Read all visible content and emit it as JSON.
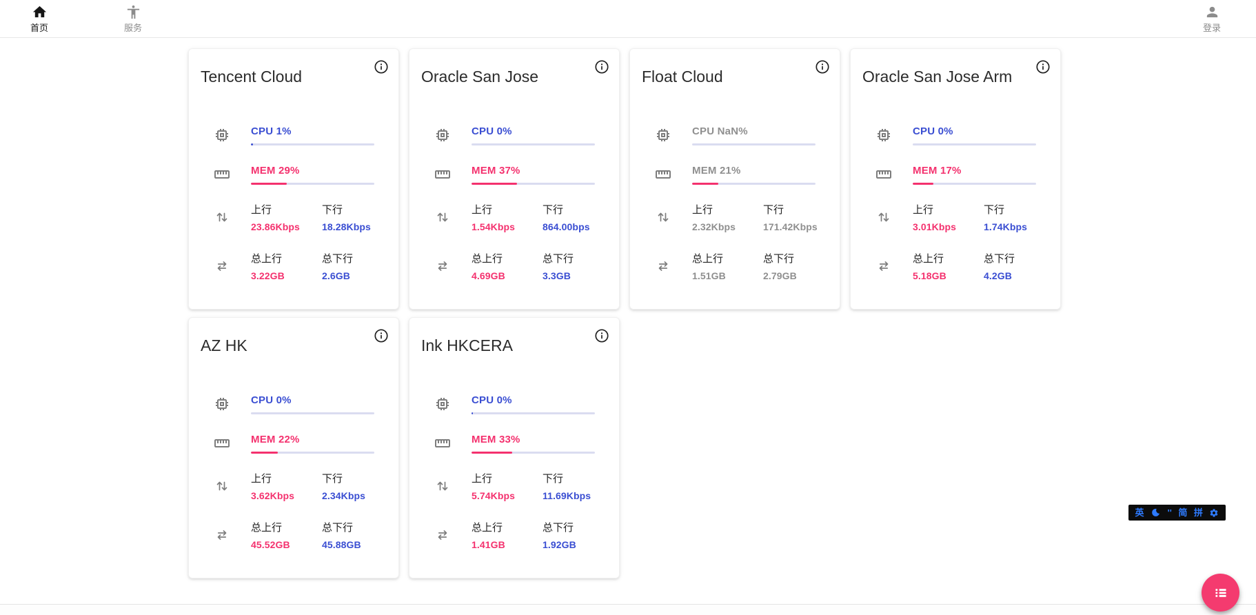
{
  "navbar": {
    "home": {
      "label": "首页",
      "icon": "home-icon",
      "active": true
    },
    "services": {
      "label": "服务",
      "icon": "accessibility-icon",
      "active": false
    },
    "login": {
      "label": "登录",
      "icon": "account-icon",
      "active": false
    }
  },
  "labels": {
    "up": "上行",
    "down": "下行",
    "total_up": "总上行",
    "total_down": "总下行"
  },
  "colors": {
    "accent_blue": "#3a4ed2",
    "accent_pink": "#f4316e",
    "bar_track": "#dadcf0",
    "offline_gray": "#8f8f8f",
    "fab_pink": "#f43b6f",
    "ime_blue": "#2e7bff"
  },
  "servers": [
    {
      "name": "Tencent Cloud",
      "cpu_label": "CPU 1%",
      "cpu_pct": 1,
      "cpu_bar_pct": 1.5,
      "mem_label": "MEM 29%",
      "mem_pct": 29,
      "up_speed": "23.86Kbps",
      "down_speed": "18.28Kbps",
      "total_up": "3.22GB",
      "total_down": "2.6GB",
      "offline": false
    },
    {
      "name": "Oracle San Jose",
      "cpu_label": "CPU 0%",
      "cpu_pct": 0,
      "cpu_bar_pct": 0,
      "mem_label": "MEM 37%",
      "mem_pct": 37,
      "up_speed": "1.54Kbps",
      "down_speed": "864.00bps",
      "total_up": "4.69GB",
      "total_down": "3.3GB",
      "offline": false
    },
    {
      "name": "Float Cloud",
      "cpu_label": "CPU NaN%",
      "cpu_pct": null,
      "cpu_bar_pct": 0,
      "mem_label": "MEM 21%",
      "mem_pct": 21,
      "up_speed": "2.32Kbps",
      "down_speed": "171.42Kbps",
      "total_up": "1.51GB",
      "total_down": "2.79GB",
      "offline": true
    },
    {
      "name": "Oracle San Jose Arm",
      "cpu_label": "CPU 0%",
      "cpu_pct": 0,
      "cpu_bar_pct": 0,
      "mem_label": "MEM 17%",
      "mem_pct": 17,
      "up_speed": "3.01Kbps",
      "down_speed": "1.74Kbps",
      "total_up": "5.18GB",
      "total_down": "4.2GB",
      "offline": false
    },
    {
      "name": "AZ HK",
      "cpu_label": "CPU 0%",
      "cpu_pct": 0,
      "cpu_bar_pct": 0,
      "mem_label": "MEM 22%",
      "mem_pct": 22,
      "up_speed": "3.62Kbps",
      "down_speed": "2.34Kbps",
      "total_up": "45.52GB",
      "total_down": "45.88GB",
      "offline": false
    },
    {
      "name": "Ink HKCERA",
      "cpu_label": "CPU 0%",
      "cpu_pct": 0,
      "cpu_bar_pct": 1.2,
      "mem_label": "MEM 33%",
      "mem_pct": 33,
      "up_speed": "5.74Kbps",
      "down_speed": "11.69Kbps",
      "total_up": "1.41GB",
      "total_down": "1.92GB",
      "offline": false
    }
  ],
  "ime": {
    "lang_label": "英",
    "moon": "moon-icon",
    "punct_label": "''",
    "simplified_label": "简",
    "pinyin_label": "拼",
    "settings": "gear-icon"
  },
  "fab": {
    "icon": "list-icon"
  }
}
